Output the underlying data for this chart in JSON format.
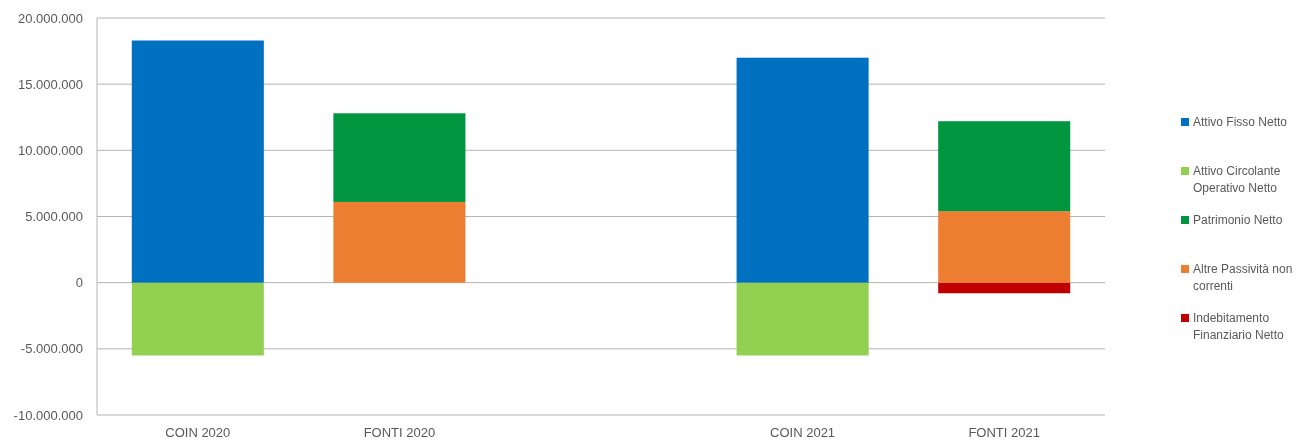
{
  "chart_data": {
    "type": "bar",
    "stacked": true,
    "categories": [
      "COIN 2020",
      "FONTI 2020",
      null,
      "COIN 2021",
      "FONTI 2021"
    ],
    "series": [
      {
        "name": "Indebitamento Finanziario Netto",
        "color": "#c00000",
        "values": [
          null,
          null,
          null,
          null,
          -800000
        ]
      },
      {
        "name": "Altre Passività non correnti",
        "color": "#ed7d31",
        "values": [
          null,
          6100000,
          null,
          null,
          5400000
        ]
      },
      {
        "name": "Patrimonio Netto",
        "color": "#00953f",
        "values": [
          null,
          6700000,
          null,
          null,
          6800000
        ]
      },
      {
        "name": "Attivo Circolante Operativo Netto",
        "color": "#92d050",
        "values": [
          -5500000,
          null,
          null,
          -5500000,
          null
        ]
      },
      {
        "name": "Attivo Fisso Netto",
        "color": "#0070c0",
        "values": [
          18300000,
          null,
          null,
          17000000,
          null
        ]
      }
    ],
    "ylim": [
      -10000000,
      20000000
    ],
    "yticks": [
      {
        "value": -10000000,
        "label": "-10.000.000"
      },
      {
        "value": -5000000,
        "label": "-5.000.000"
      },
      0,
      {
        "value": 5000000,
        "label": "5.000.000"
      },
      {
        "value": 10000000,
        "label": "10.000.000"
      },
      {
        "value": 15000000,
        "label": "15.000.000"
      },
      {
        "value": 20000000,
        "label": "20.000.000"
      }
    ],
    "grid": "y",
    "legend": "right"
  }
}
